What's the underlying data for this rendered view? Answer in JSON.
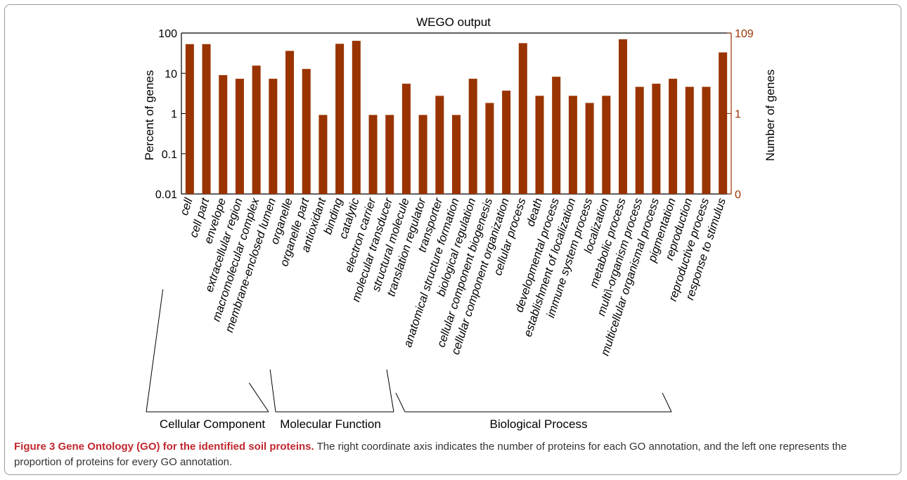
{
  "chart_data": {
    "type": "bar",
    "title": "WEGO output",
    "ylabel_left": "Percent of genes",
    "ylabel_right": "Number of genes",
    "y_scale": "log",
    "ylim": [
      0.01,
      100
    ],
    "left_ticks": [
      "100",
      "10",
      "1",
      "0.1",
      "0.01"
    ],
    "right_ticks": [
      "109",
      "1",
      "0"
    ],
    "right_axis_color": "#993300",
    "bar_color": "#993300",
    "grid": false,
    "categories": [
      "cell",
      "cell part",
      "envelope",
      "extracellular region",
      "macromolecular complex",
      "membrane-enclosed lumen",
      "organelle",
      "organelle part",
      "antioxidant",
      "binding",
      "catalytic",
      "electron carrier",
      "molecular transducer",
      "structural molecule",
      "translation regulator",
      "transporter",
      "anatomical structure formation",
      "biological regulation",
      "cellular component biogenesis",
      "cellular component organization",
      "cellular process",
      "death",
      "developmental process",
      "establishment of localization",
      "immune system process",
      "localization",
      "metabolic process",
      "multi\\-organism process",
      "multicellular organismal process",
      "pigmentation",
      "reproduction",
      "reproductive process",
      "response to stimulus"
    ],
    "values": [
      53,
      53,
      9,
      7.3,
      15.5,
      7.3,
      36,
      12.8,
      0.92,
      54,
      64,
      0.92,
      0.92,
      5.5,
      0.92,
      2.75,
      0.92,
      7.3,
      1.83,
      3.7,
      56,
      2.75,
      8.2,
      2.75,
      1.83,
      2.75,
      70,
      4.6,
      5.5,
      7.3,
      4.6,
      4.6,
      33
    ],
    "groups": [
      {
        "name": "Cellular Component",
        "start": 0,
        "end": 7
      },
      {
        "name": "Molecular Function",
        "start": 8,
        "end": 15
      },
      {
        "name": "Biological Process",
        "start": 16,
        "end": 32
      }
    ]
  },
  "caption": {
    "bold": "Figure 3 Gene Ontology (GO) for the identified soil proteins.",
    "text": " The right coordinate axis indicates the number of proteins for each GO annotation, and the left one represents the proportion of proteins for every GO annotation."
  }
}
